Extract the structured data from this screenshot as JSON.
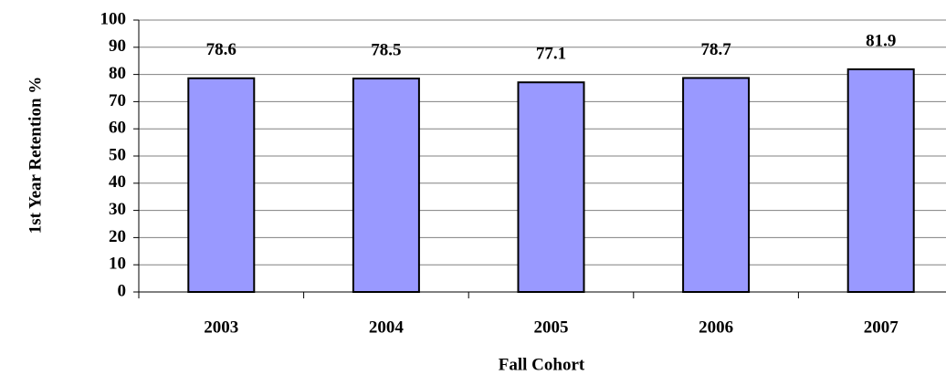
{
  "chart_data": {
    "type": "bar",
    "categories": [
      "2003",
      "2004",
      "2005",
      "2006",
      "2007"
    ],
    "values": [
      78.6,
      78.5,
      77.1,
      78.7,
      81.9
    ],
    "color": "#9999ff",
    "xlabel": "Fall Cohort",
    "ylabel": "1st Year Retention %",
    "ylim": [
      0,
      100
    ],
    "yticks": [
      0,
      10,
      20,
      30,
      40,
      50,
      60,
      70,
      80,
      90,
      100
    ],
    "grid": true
  }
}
